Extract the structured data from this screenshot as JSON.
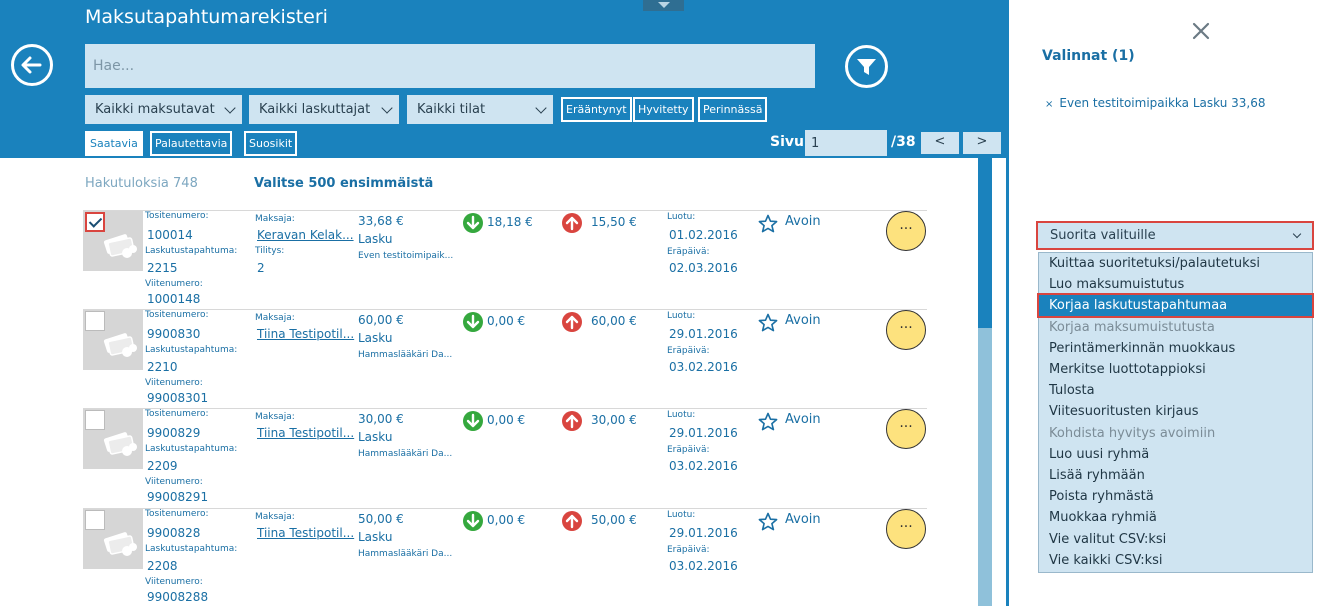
{
  "header": {
    "title": "Maksutapahtumarekisteri",
    "search_placeholder": "Hae..."
  },
  "filters": {
    "dropdowns": [
      "Kaikki maksutavat",
      "Kaikki laskuttajat",
      "Kaikki tilat"
    ],
    "tags": [
      "Erääntynyt",
      "Hyvitetty",
      "Perinnässä"
    ]
  },
  "tabs": [
    "Saatavia",
    "Palautettavia",
    "Suosikit"
  ],
  "pagination": {
    "label": "Sivu",
    "current": "1",
    "total": "/38",
    "prev": "<",
    "next": ">"
  },
  "results": {
    "count": "Hakutuloksia 748",
    "select_first": "Valitse 500 ensimmäistä"
  },
  "labels": {
    "tositenumero": "Tositenumero:",
    "laskutustapahtuma": "Laskutustapahtuma:",
    "viitenumero": "Viitenumero:",
    "maksaja": "Maksaja:",
    "tilitys": "Tilitys:",
    "luotu": "Luotu:",
    "erapaiva": "Eräpäivä:"
  },
  "rows": [
    {
      "checked": true,
      "tositenumero": "100014",
      "laskutustapahtuma": "2215",
      "viitenumero": "1000148",
      "maksaja": "Keravan Kelak...",
      "tilitys": "2",
      "amount": "33,68 €",
      "type": "Lasku",
      "merchant": "Even testitoimipaik...",
      "down": "18,18 €",
      "up": "15,50 €",
      "luotu": "01.02.2016",
      "erapaiva": "02.03.2016",
      "status": "Avoin"
    },
    {
      "checked": false,
      "tositenumero": "9900830",
      "laskutustapahtuma": "2210",
      "viitenumero": "99008301",
      "maksaja": "Tiina Testipotil...",
      "tilitys": "",
      "amount": "60,00 €",
      "type": "Lasku",
      "merchant": "Hammaslääkäri Da...",
      "down": "0,00 €",
      "up": "60,00 €",
      "luotu": "29.01.2016",
      "erapaiva": "03.02.2016",
      "status": "Avoin"
    },
    {
      "checked": false,
      "tositenumero": "9900829",
      "laskutustapahtuma": "2209",
      "viitenumero": "99008291",
      "maksaja": "Tiina Testipotil...",
      "tilitys": "",
      "amount": "30,00 €",
      "type": "Lasku",
      "merchant": "Hammaslääkäri Da...",
      "down": "0,00 €",
      "up": "30,00 €",
      "luotu": "29.01.2016",
      "erapaiva": "03.02.2016",
      "status": "Avoin"
    },
    {
      "checked": false,
      "tositenumero": "9900828",
      "laskutustapahtuma": "2208",
      "viitenumero": "99008288",
      "maksaja": "Tiina Testipotil...",
      "tilitys": "",
      "amount": "50,00 €",
      "type": "Lasku",
      "merchant": "Hammaslääkäri Da...",
      "down": "0,00 €",
      "up": "50,00 €",
      "luotu": "29.01.2016",
      "erapaiva": "03.02.2016",
      "status": "Avoin"
    }
  ],
  "more_label": "···",
  "panel": {
    "title": "Valinnat (1)",
    "selected_item": "Even testitoimipaikka Lasku 33,68",
    "remove_glyph": "×",
    "action_select": "Suorita valituille",
    "actions": [
      {
        "label": "Kuittaa suoritetuksi/palautetuksi",
        "state": "normal"
      },
      {
        "label": "Luo maksumuistutus",
        "state": "normal"
      },
      {
        "label": "Korjaa laskutustapahtumaa",
        "state": "highlight"
      },
      {
        "label": "Korjaa maksumuistutusta",
        "state": "disabled"
      },
      {
        "label": "Perintämerkinnän muokkaus",
        "state": "normal"
      },
      {
        "label": "Merkitse luottotappioksi",
        "state": "normal"
      },
      {
        "label": "Tulosta",
        "state": "normal"
      },
      {
        "label": "Viitesuoritusten kirjaus",
        "state": "normal"
      },
      {
        "label": "Kohdista hyvitys avoimiin",
        "state": "disabled"
      },
      {
        "label": "Luo uusi ryhmä",
        "state": "normal"
      },
      {
        "label": "Lisää ryhmään",
        "state": "normal"
      },
      {
        "label": "Poista ryhmästä",
        "state": "normal"
      },
      {
        "label": "Muokkaa ryhmiä",
        "state": "normal"
      },
      {
        "label": "Vie valitut CSV:ksi",
        "state": "normal"
      },
      {
        "label": "Vie kaikki CSV:ksi",
        "state": "normal"
      }
    ]
  },
  "colors": {
    "header_blue": "#1a82bd",
    "accent_red": "#d9453f",
    "down_green": "#35a83e",
    "more_yellow": "#fde27e"
  }
}
